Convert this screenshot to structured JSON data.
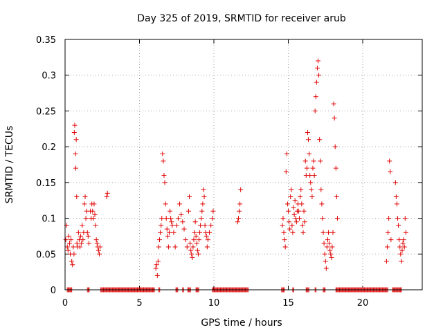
{
  "chart_data": {
    "type": "scatter",
    "title": "Day 325 of 2019, SRMTID for receiver arub",
    "xlabel": "GPS time / hours",
    "ylabel": "SRMTID / TECUs",
    "xlim": [
      0,
      24
    ],
    "ylim": [
      0,
      0.35
    ],
    "xticks": [
      0,
      5,
      10,
      15,
      20
    ],
    "yticks": [
      0,
      0.05,
      0.1,
      0.15,
      0.2,
      0.25,
      0.3,
      0.35
    ],
    "xtick_labels": [
      "0",
      "5",
      "10",
      "15",
      "20"
    ],
    "ytick_labels": [
      "0",
      "0.05",
      "0.1",
      "0.15",
      "0.2",
      "0.25",
      "0.3",
      "0.35"
    ],
    "grid": true,
    "marker": "+",
    "color": "#e00000",
    "series": [
      {
        "name": "SRMTID",
        "x": [
          0.05,
          0.1,
          0.15,
          0.2,
          0.25,
          0.3,
          0.35,
          0.4,
          0.45,
          0.5,
          0.55,
          0.6,
          0.62,
          0.65,
          0.7,
          0.72,
          0.75,
          0.78,
          0.8,
          0.85,
          0.9,
          0.95,
          1.0,
          1.05,
          1.1,
          1.15,
          1.2,
          1.25,
          1.3,
          1.35,
          1.4,
          1.45,
          1.5,
          1.55,
          1.6,
          1.7,
          1.75,
          1.8,
          1.85,
          1.9,
          1.95,
          2.0,
          2.05,
          2.1,
          2.15,
          2.2,
          2.25,
          2.3,
          2.35,
          2.8,
          2.85,
          6.1,
          6.15,
          6.2,
          6.25,
          6.3,
          6.35,
          6.4,
          6.45,
          6.5,
          6.55,
          6.6,
          6.65,
          6.7,
          6.75,
          6.8,
          6.85,
          6.9,
          6.95,
          7.0,
          7.05,
          7.1,
          7.15,
          7.2,
          7.3,
          7.4,
          7.5,
          7.6,
          7.7,
          7.8,
          7.9,
          8.0,
          8.1,
          8.2,
          8.3,
          8.35,
          8.4,
          8.45,
          8.5,
          8.55,
          8.6,
          8.65,
          8.7,
          8.75,
          8.8,
          8.85,
          8.9,
          8.95,
          9.0,
          9.05,
          9.1,
          9.15,
          9.2,
          9.25,
          9.3,
          9.35,
          9.4,
          9.45,
          9.5,
          9.55,
          9.6,
          9.7,
          9.8,
          9.9,
          9.95,
          11.6,
          11.65,
          11.7,
          11.75,
          11.8,
          14.6,
          14.65,
          14.7,
          14.75,
          14.8,
          14.85,
          14.9,
          14.95,
          15.0,
          15.05,
          15.1,
          15.15,
          15.2,
          15.25,
          15.3,
          15.35,
          15.4,
          15.45,
          15.5,
          15.55,
          15.6,
          15.65,
          15.7,
          15.75,
          15.8,
          15.85,
          15.9,
          15.95,
          16.0,
          16.05,
          16.1,
          16.15,
          16.2,
          16.25,
          16.3,
          16.35,
          16.4,
          16.45,
          16.5,
          16.55,
          16.6,
          16.65,
          16.7,
          16.75,
          16.8,
          16.85,
          16.9,
          16.95,
          17.0,
          17.05,
          17.1,
          17.15,
          17.2,
          17.25,
          17.3,
          17.35,
          17.4,
          17.45,
          17.5,
          17.55,
          17.6,
          17.65,
          17.7,
          17.75,
          17.8,
          17.85,
          17.9,
          17.95,
          18.0,
          18.05,
          18.1,
          18.15,
          18.2,
          18.25,
          18.3,
          21.6,
          21.65,
          21.7,
          21.75,
          21.8,
          21.85,
          21.9,
          22.2,
          22.25,
          22.3,
          22.35,
          22.4,
          22.45,
          22.5,
          22.55,
          22.6,
          22.65,
          22.7,
          22.75,
          22.8,
          22.85,
          22.9
        ],
        "y": [
          0.07,
          0.09,
          0.06,
          0.055,
          0.075,
          0.065,
          0.05,
          0.07,
          0.04,
          0.035,
          0.06,
          0.05,
          0.22,
          0.23,
          0.19,
          0.17,
          0.21,
          0.13,
          0.065,
          0.06,
          0.08,
          0.07,
          0.06,
          0.075,
          0.065,
          0.09,
          0.07,
          0.08,
          0.12,
          0.13,
          0.1,
          0.11,
          0.08,
          0.075,
          0.065,
          0.11,
          0.1,
          0.12,
          0.11,
          0.1,
          0.12,
          0.105,
          0.09,
          0.07,
          0.065,
          0.06,
          0.055,
          0.05,
          0.06,
          0.13,
          0.135,
          0.03,
          0.035,
          0.02,
          0.04,
          0.06,
          0.07,
          0.08,
          0.09,
          0.1,
          0.19,
          0.18,
          0.16,
          0.15,
          0.12,
          0.1,
          0.085,
          0.075,
          0.06,
          0.08,
          0.11,
          0.1,
          0.095,
          0.09,
          0.08,
          0.06,
          0.09,
          0.1,
          0.12,
          0.105,
          0.095,
          0.085,
          0.07,
          0.06,
          0.11,
          0.13,
          0.065,
          0.055,
          0.05,
          0.045,
          0.06,
          0.07,
          0.08,
          0.095,
          0.075,
          0.065,
          0.055,
          0.05,
          0.07,
          0.08,
          0.09,
          0.1,
          0.11,
          0.12,
          0.14,
          0.13,
          0.09,
          0.08,
          0.075,
          0.06,
          0.07,
          0.08,
          0.09,
          0.1,
          0.11,
          0.095,
          0.1,
          0.11,
          0.12,
          0.14,
          0.09,
          0.1,
          0.08,
          0.07,
          0.06,
          0.165,
          0.19,
          0.12,
          0.11,
          0.095,
          0.085,
          0.13,
          0.14,
          0.09,
          0.08,
          0.115,
          0.105,
          0.125,
          0.1,
          0.095,
          0.11,
          0.12,
          0.11,
          0.1,
          0.13,
          0.14,
          0.12,
          0.09,
          0.08,
          0.11,
          0.095,
          0.18,
          0.16,
          0.17,
          0.22,
          0.21,
          0.19,
          0.16,
          0.15,
          0.14,
          0.13,
          0.17,
          0.18,
          0.16,
          0.25,
          0.27,
          0.29,
          0.31,
          0.32,
          0.3,
          0.21,
          0.18,
          0.14,
          0.12,
          0.1,
          0.08,
          0.065,
          0.05,
          0.04,
          0.03,
          0.06,
          0.07,
          0.08,
          0.065,
          0.055,
          0.05,
          0.045,
          0.06,
          0.08,
          0.26,
          0.24,
          0.2,
          0.17,
          0.13,
          0.1,
          0.04,
          0.06,
          0.08,
          0.1,
          0.18,
          0.165,
          0.07,
          0.15,
          0.13,
          0.12,
          0.1,
          0.09,
          0.07,
          0.06,
          0.05,
          0.04,
          0.055,
          0.065,
          0.07,
          0.06,
          0.1,
          0.08
        ],
        "zero_segments": [
          [
            0.15,
            0.5
          ],
          [
            1.5,
            1.65
          ],
          [
            2.4,
            6.0
          ],
          [
            6.3,
            6.4
          ],
          [
            7.45,
            7.6
          ],
          [
            7.9,
            8.0
          ],
          [
            8.25,
            8.45
          ],
          [
            8.8,
            9.0
          ],
          [
            9.9,
            12.3
          ],
          [
            14.55,
            14.75
          ],
          [
            15.3,
            15.4
          ],
          [
            16.2,
            16.4
          ],
          [
            16.8,
            16.9
          ],
          [
            17.35,
            17.5
          ],
          [
            18.2,
            21.7
          ],
          [
            22.0,
            22.6
          ]
        ]
      }
    ]
  }
}
